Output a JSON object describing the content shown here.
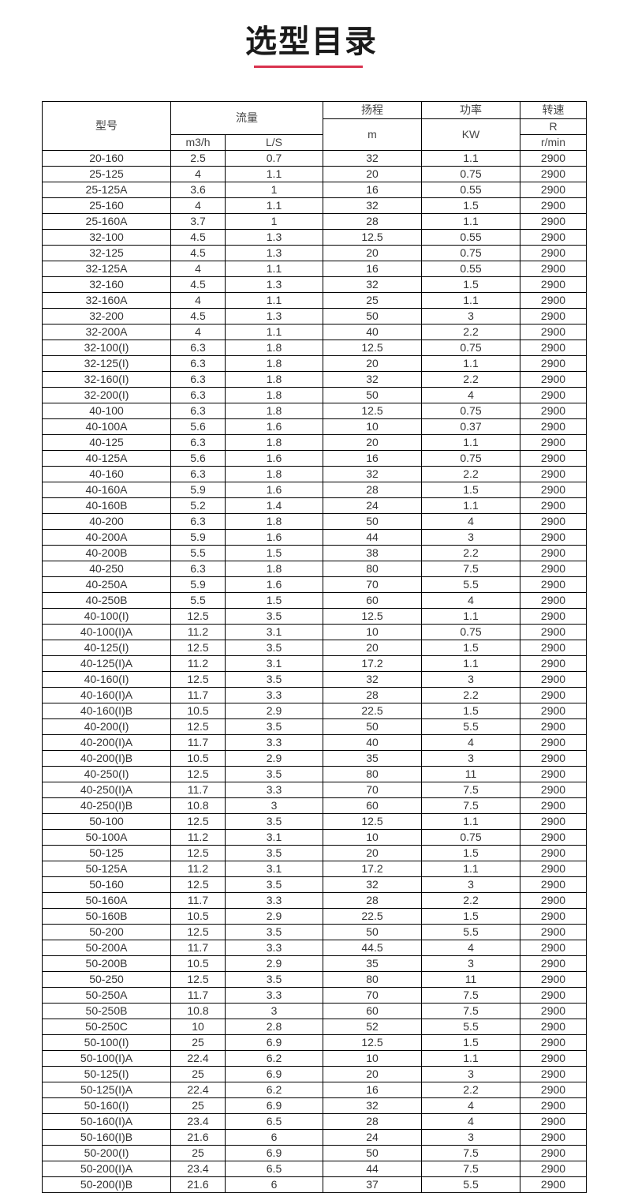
{
  "title": "选型目录",
  "accent_color": "#d9334f",
  "table": {
    "headers": {
      "model": "型号",
      "flow": "流量",
      "flow_m3h": "m3/h",
      "flow_ls": "L/S",
      "head": "扬程",
      "head_unit": "m",
      "power": "功率",
      "power_unit": "KW",
      "speed": "转速",
      "speed_unit_r": "R",
      "speed_unit": "r/min"
    },
    "rows": [
      [
        "20-160",
        "2.5",
        "0.7",
        "32",
        "1.1",
        "2900"
      ],
      [
        "25-125",
        "4",
        "1.1",
        "20",
        "0.75",
        "2900"
      ],
      [
        "25-125A",
        "3.6",
        "1",
        "16",
        "0.55",
        "2900"
      ],
      [
        "25-160",
        "4",
        "1.1",
        "32",
        "1.5",
        "2900"
      ],
      [
        "25-160A",
        "3.7",
        "1",
        "28",
        "1.1",
        "2900"
      ],
      [
        "32-100",
        "4.5",
        "1.3",
        "12.5",
        "0.55",
        "2900"
      ],
      [
        "32-125",
        "4.5",
        "1.3",
        "20",
        "0.75",
        "2900"
      ],
      [
        "32-125A",
        "4",
        "1.1",
        "16",
        "0.55",
        "2900"
      ],
      [
        "32-160",
        "4.5",
        "1.3",
        "32",
        "1.5",
        "2900"
      ],
      [
        "32-160A",
        "4",
        "1.1",
        "25",
        "1.1",
        "2900"
      ],
      [
        "32-200",
        "4.5",
        "1.3",
        "50",
        "3",
        "2900"
      ],
      [
        "32-200A",
        "4",
        "1.1",
        "40",
        "2.2",
        "2900"
      ],
      [
        "32-100(I)",
        "6.3",
        "1.8",
        "12.5",
        "0.75",
        "2900"
      ],
      [
        "32-125(I)",
        "6.3",
        "1.8",
        "20",
        "1.1",
        "2900"
      ],
      [
        "32-160(I)",
        "6.3",
        "1.8",
        "32",
        "2.2",
        "2900"
      ],
      [
        "32-200(I)",
        "6.3",
        "1.8",
        "50",
        "4",
        "2900"
      ],
      [
        "40-100",
        "6.3",
        "1.8",
        "12.5",
        "0.75",
        "2900"
      ],
      [
        "40-100A",
        "5.6",
        "1.6",
        "10",
        "0.37",
        "2900"
      ],
      [
        "40-125",
        "6.3",
        "1.8",
        "20",
        "1.1",
        "2900"
      ],
      [
        "40-125A",
        "5.6",
        "1.6",
        "16",
        "0.75",
        "2900"
      ],
      [
        "40-160",
        "6.3",
        "1.8",
        "32",
        "2.2",
        "2900"
      ],
      [
        "40-160A",
        "5.9",
        "1.6",
        "28",
        "1.5",
        "2900"
      ],
      [
        "40-160B",
        "5.2",
        "1.4",
        "24",
        "1.1",
        "2900"
      ],
      [
        "40-200",
        "6.3",
        "1.8",
        "50",
        "4",
        "2900"
      ],
      [
        "40-200A",
        "5.9",
        "1.6",
        "44",
        "3",
        "2900"
      ],
      [
        "40-200B",
        "5.5",
        "1.5",
        "38",
        "2.2",
        "2900"
      ],
      [
        "40-250",
        "6.3",
        "1.8",
        "80",
        "7.5",
        "2900"
      ],
      [
        "40-250A",
        "5.9",
        "1.6",
        "70",
        "5.5",
        "2900"
      ],
      [
        "40-250B",
        "5.5",
        "1.5",
        "60",
        "4",
        "2900"
      ],
      [
        "40-100(I)",
        "12.5",
        "3.5",
        "12.5",
        "1.1",
        "2900"
      ],
      [
        "40-100(I)A",
        "11.2",
        "3.1",
        "10",
        "0.75",
        "2900"
      ],
      [
        "40-125(I)",
        "12.5",
        "3.5",
        "20",
        "1.5",
        "2900"
      ],
      [
        "40-125(I)A",
        "11.2",
        "3.1",
        "17.2",
        "1.1",
        "2900"
      ],
      [
        "40-160(I)",
        "12.5",
        "3.5",
        "32",
        "3",
        "2900"
      ],
      [
        "40-160(I)A",
        "11.7",
        "3.3",
        "28",
        "2.2",
        "2900"
      ],
      [
        "40-160(I)B",
        "10.5",
        "2.9",
        "22.5",
        "1.5",
        "2900"
      ],
      [
        "40-200(I)",
        "12.5",
        "3.5",
        "50",
        "5.5",
        "2900"
      ],
      [
        "40-200(I)A",
        "11.7",
        "3.3",
        "40",
        "4",
        "2900"
      ],
      [
        "40-200(I)B",
        "10.5",
        "2.9",
        "35",
        "3",
        "2900"
      ],
      [
        "40-250(I)",
        "12.5",
        "3.5",
        "80",
        "11",
        "2900"
      ],
      [
        "40-250(I)A",
        "11.7",
        "3.3",
        "70",
        "7.5",
        "2900"
      ],
      [
        "40-250(I)B",
        "10.8",
        "3",
        "60",
        "7.5",
        "2900"
      ],
      [
        "50-100",
        "12.5",
        "3.5",
        "12.5",
        "1.1",
        "2900"
      ],
      [
        "50-100A",
        "11.2",
        "3.1",
        "10",
        "0.75",
        "2900"
      ],
      [
        "50-125",
        "12.5",
        "3.5",
        "20",
        "1.5",
        "2900"
      ],
      [
        "50-125A",
        "11.2",
        "3.1",
        "17.2",
        "1.1",
        "2900"
      ],
      [
        "50-160",
        "12.5",
        "3.5",
        "32",
        "3",
        "2900"
      ],
      [
        "50-160A",
        "11.7",
        "3.3",
        "28",
        "2.2",
        "2900"
      ],
      [
        "50-160B",
        "10.5",
        "2.9",
        "22.5",
        "1.5",
        "2900"
      ],
      [
        "50-200",
        "12.5",
        "3.5",
        "50",
        "5.5",
        "2900"
      ],
      [
        "50-200A",
        "11.7",
        "3.3",
        "44.5",
        "4",
        "2900"
      ],
      [
        "50-200B",
        "10.5",
        "2.9",
        "35",
        "3",
        "2900"
      ],
      [
        "50-250",
        "12.5",
        "3.5",
        "80",
        "11",
        "2900"
      ],
      [
        "50-250A",
        "11.7",
        "3.3",
        "70",
        "7.5",
        "2900"
      ],
      [
        "50-250B",
        "10.8",
        "3",
        "60",
        "7.5",
        "2900"
      ],
      [
        "50-250C",
        "10",
        "2.8",
        "52",
        "5.5",
        "2900"
      ],
      [
        "50-100(I)",
        "25",
        "6.9",
        "12.5",
        "1.5",
        "2900"
      ],
      [
        "50-100(I)A",
        "22.4",
        "6.2",
        "10",
        "1.1",
        "2900"
      ],
      [
        "50-125(I)",
        "25",
        "6.9",
        "20",
        "3",
        "2900"
      ],
      [
        "50-125(I)A",
        "22.4",
        "6.2",
        "16",
        "2.2",
        "2900"
      ],
      [
        "50-160(I)",
        "25",
        "6.9",
        "32",
        "4",
        "2900"
      ],
      [
        "50-160(I)A",
        "23.4",
        "6.5",
        "28",
        "4",
        "2900"
      ],
      [
        "50-160(I)B",
        "21.6",
        "6",
        "24",
        "3",
        "2900"
      ],
      [
        "50-200(I)",
        "25",
        "6.9",
        "50",
        "7.5",
        "2900"
      ],
      [
        "50-200(I)A",
        "23.4",
        "6.5",
        "44",
        "7.5",
        "2900"
      ],
      [
        "50-200(I)B",
        "21.6",
        "6",
        "37",
        "5.5",
        "2900"
      ]
    ]
  }
}
